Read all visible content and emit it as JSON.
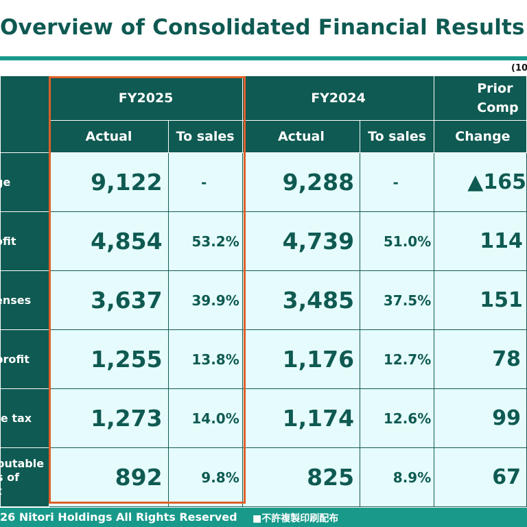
{
  "title": "Overview of Consolidated Financial Results",
  "unit_note": "(10",
  "headers": {
    "fy2025": "FY2025",
    "fy2024": "FY2024",
    "prior_line1": "Prior ",
    "prior_line2": "Comp",
    "actual": "Actual",
    "to_sales": "To sales",
    "change": "Change"
  },
  "rows": [
    {
      "label": "ge",
      "fy2025_actual": "9,122",
      "fy2025_to_sales": "-",
      "fy2024_actual": "9,288",
      "fy2024_to_sales": "-",
      "change": "▲165"
    },
    {
      "label": "ofit",
      "fy2025_actual": "4,854",
      "fy2025_to_sales": "53.2%",
      "fy2024_actual": "4,739",
      "fy2024_to_sales": "51.0%",
      "change": "114"
    },
    {
      "label": "enses",
      "fy2025_actual": "3,637",
      "fy2025_to_sales": "39.9%",
      "fy2024_actual": "3,485",
      "fy2024_to_sales": "37.5%",
      "change": "151"
    },
    {
      "label": "profit",
      "fy2025_actual": "1,255",
      "fy2025_to_sales": "13.8%",
      "fy2024_actual": "1,176",
      "fy2024_to_sales": "12.7%",
      "change": "78"
    },
    {
      "label": "re tax",
      "fy2025_actual": "1,273",
      "fy2025_to_sales": "14.0%",
      "fy2024_actual": "1,174",
      "fy2024_to_sales": "12.6%",
      "change": "99"
    },
    {
      "label_lines": [
        "butable",
        "s of",
        "t"
      ],
      "fy2025_actual": "892",
      "fy2025_to_sales": "9.8%",
      "fy2024_actual": "825",
      "fy2024_to_sales": "8.9%",
      "change": "67"
    }
  ],
  "footer": {
    "copyright": "26 Nitori Holdings All Rights Reserved",
    "notice": "■不許複製印刷配布"
  }
}
